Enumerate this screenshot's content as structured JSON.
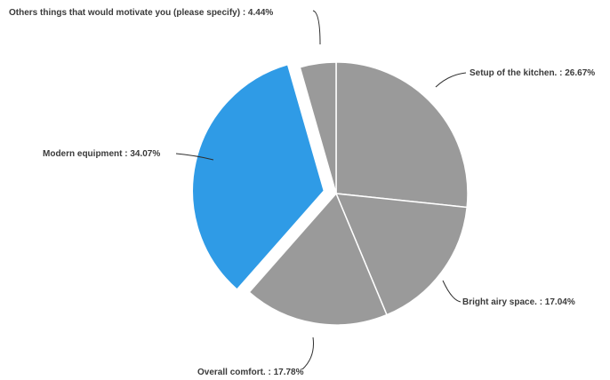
{
  "chart_data": {
    "type": "pie",
    "title": "",
    "slices": [
      {
        "label": "Setup of the kitchen. : 26.67%",
        "value": 26.67,
        "color": "#9a9a9a",
        "exploded": false
      },
      {
        "label": "Bright airy space. : 17.04%",
        "value": 17.04,
        "color": "#9a9a9a",
        "exploded": false
      },
      {
        "label": "Overall comfort. : 17.78%",
        "value": 17.78,
        "color": "#9a9a9a",
        "exploded": false
      },
      {
        "label": "Modern equipment : 34.07%",
        "value": 34.07,
        "color": "#2f9be6",
        "exploded": true
      },
      {
        "label": "Others things that would motivate you (please specify) : 4.44%",
        "value": 4.44,
        "color": "#9a9a9a",
        "exploded": false
      }
    ],
    "start_angle_deg": 0,
    "direction": "clockwise",
    "legend": "none",
    "label_placement": "outside-with-leader-lines"
  }
}
